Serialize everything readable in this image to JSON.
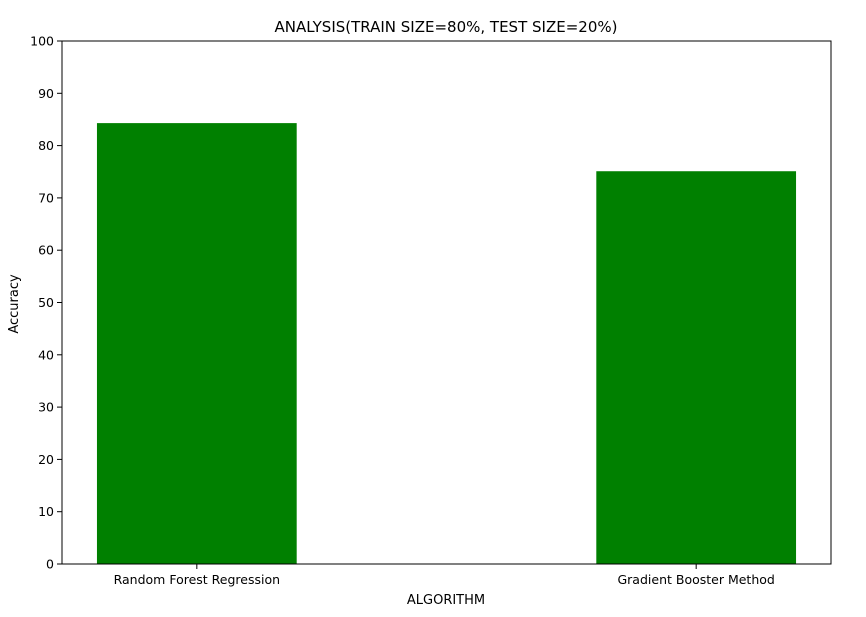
{
  "chart_data": {
    "type": "bar",
    "title": "ANALYSIS(TRAIN SIZE=80%, TEST SIZE=20%)",
    "xlabel": "ALGORITHM",
    "ylabel": "Accuracy",
    "categories": [
      "Random Forest Regression",
      "Gradient Booster Method"
    ],
    "values": [
      84.3,
      75.1
    ],
    "ylim": [
      0,
      100
    ],
    "yticks": [
      "0",
      "10",
      "20",
      "30",
      "40",
      "50",
      "60",
      "70",
      "80",
      "90",
      "100"
    ],
    "bar_color": "#008000",
    "grid": false
  }
}
